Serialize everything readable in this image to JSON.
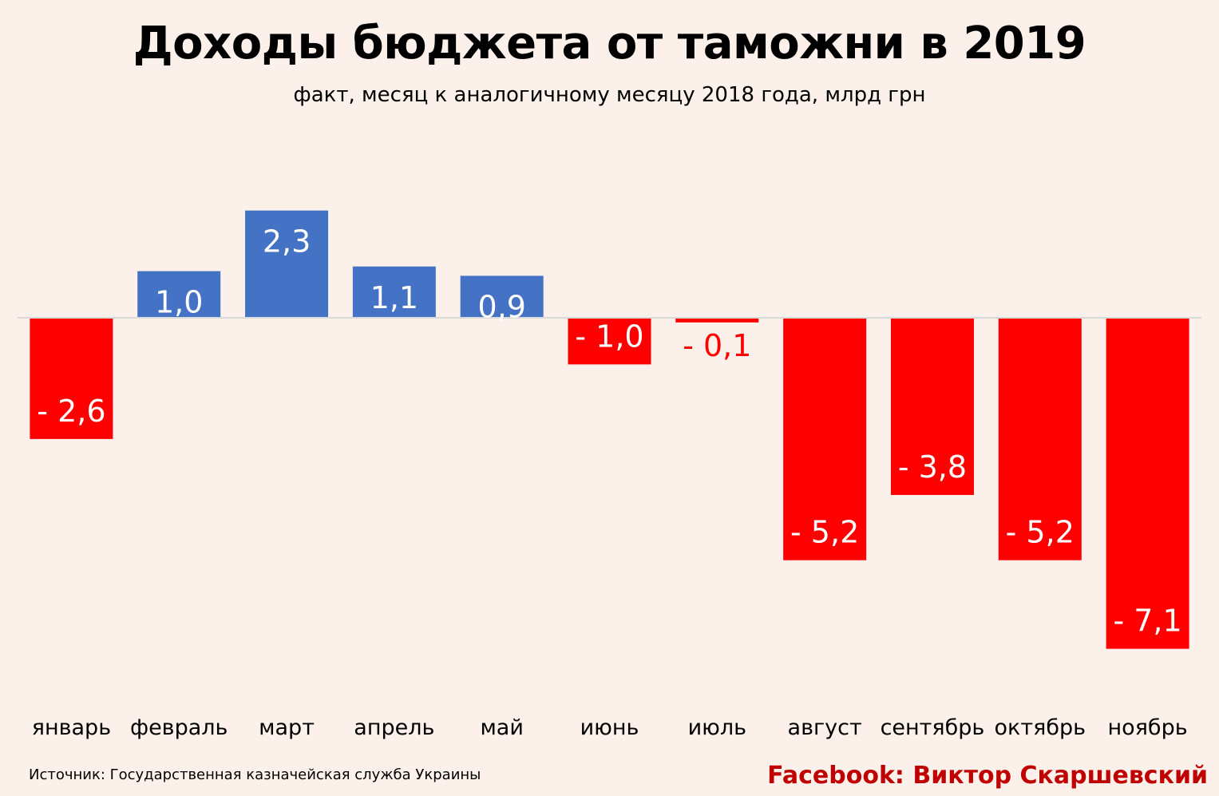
{
  "chart_data": {
    "type": "bar",
    "title": "Доходы бюджета от таможни в 2019",
    "subtitle": "факт, месяц к аналогичному месяцу 2018 года, млрд грн",
    "categories": [
      "январь",
      "февраль",
      "март",
      "апрель",
      "май",
      "июнь",
      "июль",
      "август",
      "сентябрь",
      "октябрь",
      "ноябрь"
    ],
    "values": [
      -2.6,
      1.0,
      2.3,
      1.1,
      0.9,
      -1.0,
      -0.1,
      -5.2,
      -3.8,
      -5.2,
      -7.1
    ],
    "data_labels": [
      "- 2,6",
      "1,0",
      "2,3",
      "1,1",
      "0,9",
      "- 1,0",
      "- 0,1",
      "- 5,2",
      "- 3,8",
      "- 5,2",
      "- 7,1"
    ],
    "ylim": [
      -7.5,
      2.5
    ],
    "xlabel": "",
    "ylabel": "",
    "grid": false,
    "colors": {
      "positive": "#4472c4",
      "negative": "#ff0000",
      "axis": "#d9d9d9",
      "outside_label": "#ff0000",
      "inside_label": "#ffffff"
    }
  },
  "footer": {
    "source": "Источник: Государственная казначейская служба Украины",
    "credit": "Facebook: Виктор Скаршевский"
  }
}
